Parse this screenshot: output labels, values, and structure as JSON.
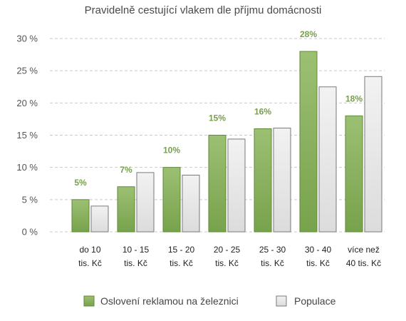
{
  "chart_data": {
    "type": "bar",
    "title": "Pravidelně cestující vlakem dle příjmu domácnosti",
    "categories": [
      [
        "do 10",
        "tis. Kč"
      ],
      [
        "10 - 15",
        "tis. Kč"
      ],
      [
        "15 - 20",
        "tis. Kč"
      ],
      [
        "20 - 25",
        "tis. Kč"
      ],
      [
        "25 - 30",
        "tis. Kč"
      ],
      [
        "30 - 40",
        "tis. Kč"
      ],
      [
        "více než",
        "40 tis. Kč"
      ]
    ],
    "series": [
      {
        "name": "Oslovení reklamou na železnici",
        "values": [
          5,
          7,
          10,
          15,
          16,
          28,
          18
        ],
        "labels": [
          "5%",
          "7%",
          "10%",
          "15%",
          "16%",
          "28%",
          "18%"
        ],
        "color": "#78a24c",
        "color_light": "#9cc072"
      },
      {
        "name": "Populace",
        "values": [
          4,
          9.2,
          8.8,
          14.4,
          16.1,
          22.5,
          24.1
        ],
        "color": "#dcdcdc",
        "color_light": "#f2f2f2"
      }
    ],
    "ylim": [
      0,
      30
    ],
    "yticks": [
      0,
      5,
      10,
      15,
      20,
      25,
      30
    ],
    "ytick_labels": [
      "0 %",
      "5 %",
      "10 %",
      "15 %",
      "20 %",
      "25 %",
      "30 %"
    ],
    "grid": true,
    "legend": "bottom"
  }
}
